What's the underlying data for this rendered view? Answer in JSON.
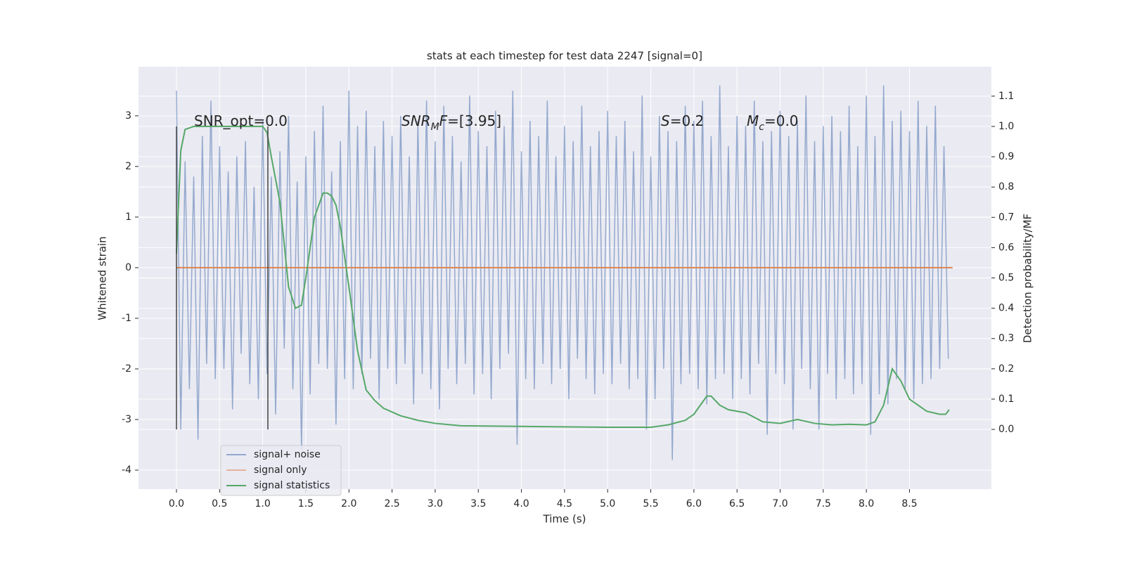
{
  "chart_data": {
    "type": "line",
    "title": "stats at each timestep for test data 2247 [signal=0]",
    "xlabel": "Time (s)",
    "ylabel": "Whitened strain",
    "y2label": "Detection probability/MF",
    "xlim": [
      -0.44,
      9.45
    ],
    "ylim": [
      -4.375,
      3.97
    ],
    "y2lim": [
      -0.197,
      1.197
    ],
    "xticks": [
      {
        "value": 0,
        "label": "0.0"
      },
      0.5,
      {
        "value": 1,
        "label": "1.0"
      },
      1.5,
      {
        "value": 2,
        "label": "2.0"
      },
      2.5,
      {
        "value": 3,
        "label": "3.0"
      },
      3.5,
      {
        "value": 4,
        "label": "4.0"
      },
      4.5,
      {
        "value": 5,
        "label": "5.0"
      },
      5.5,
      {
        "value": 6,
        "label": "6.0"
      },
      6.5,
      {
        "value": 7,
        "label": "7.0"
      },
      7.5,
      {
        "value": 8,
        "label": "8.0"
      },
      8.5
    ],
    "yticks": [
      -4,
      -3,
      -2,
      -1,
      0,
      1,
      2,
      3
    ],
    "y2ticks": [
      {
        "value": 0,
        "label": "0.0"
      },
      0.1,
      0.2,
      0.3,
      0.4,
      0.5,
      0.6,
      0.7,
      0.8,
      0.9,
      {
        "value": 1,
        "label": "1.0"
      },
      1.1
    ],
    "grid": true,
    "legend": "lower left",
    "annotations": [
      {
        "parts": [
          {
            "text": "SNR_opt=0.0"
          }
        ]
      },
      {
        "parts": [
          {
            "text": "SNR",
            "italic": true
          },
          {
            "text": "M",
            "italic": true,
            "sub": true
          },
          {
            "text": "F",
            "italic": true
          },
          {
            "text": "=[3.95]"
          }
        ]
      },
      {
        "parts": [
          {
            "text": "S",
            "italic": true
          },
          {
            "text": "=0.2"
          }
        ]
      },
      {
        "parts": [
          {
            "text": "M",
            "italic": true
          },
          {
            "text": "c",
            "italic": true,
            "sub": true
          },
          {
            "text": "=0.0"
          }
        ]
      }
    ],
    "vlines": [
      {
        "x": 0,
        "y2": [
          0,
          1
        ]
      },
      {
        "x": 1.06,
        "y2": [
          0,
          1
        ]
      }
    ],
    "series": [
      {
        "name": "signal+ noise",
        "color": "#4c72b0",
        "x": [
          0,
          0.05,
          0.1,
          0.15,
          0.2,
          0.25,
          0.3,
          0.35,
          0.4,
          0.45,
          0.5,
          0.55,
          0.6,
          0.65,
          0.7,
          0.75,
          0.8,
          0.85,
          0.9,
          0.95,
          1,
          1.05,
          1.1,
          1.15,
          1.2,
          1.25,
          1.3,
          1.35,
          1.4,
          1.45,
          1.5,
          1.55,
          1.6,
          1.65,
          1.7,
          1.75,
          1.8,
          1.85,
          1.9,
          1.95,
          2,
          2.05,
          2.1,
          2.15,
          2.2,
          2.25,
          2.3,
          2.35,
          2.4,
          2.45,
          2.5,
          2.55,
          2.6,
          2.65,
          2.7,
          2.75,
          2.8,
          2.85,
          2.9,
          2.95,
          3,
          3.05,
          3.1,
          3.15,
          3.2,
          3.25,
          3.3,
          3.35,
          3.4,
          3.45,
          3.5,
          3.55,
          3.6,
          3.65,
          3.7,
          3.75,
          3.8,
          3.85,
          3.9,
          3.95,
          4,
          4.05,
          4.1,
          4.15,
          4.2,
          4.25,
          4.3,
          4.35,
          4.4,
          4.45,
          4.5,
          4.55,
          4.6,
          4.65,
          4.7,
          4.75,
          4.8,
          4.85,
          4.9,
          4.95,
          5,
          5.05,
          5.1,
          5.15,
          5.2,
          5.25,
          5.3,
          5.35,
          5.4,
          5.45,
          5.5,
          5.55,
          5.6,
          5.65,
          5.7,
          5.75,
          5.8,
          5.85,
          5.9,
          5.95,
          6,
          6.05,
          6.1,
          6.15,
          6.2,
          6.25,
          6.3,
          6.35,
          6.4,
          6.45,
          6.5,
          6.55,
          6.6,
          6.65,
          6.7,
          6.75,
          6.8,
          6.85,
          6.9,
          6.95,
          7,
          7.05,
          7.1,
          7.15,
          7.2,
          7.25,
          7.3,
          7.35,
          7.4,
          7.45,
          7.5,
          7.55,
          7.6,
          7.65,
          7.7,
          7.75,
          7.8,
          7.85,
          7.9,
          7.95,
          8,
          8.05,
          8.1,
          8.15,
          8.2,
          8.25,
          8.3,
          8.35,
          8.4,
          8.45,
          8.5,
          8.55,
          8.6,
          8.65,
          8.7,
          8.75,
          8.8,
          8.85,
          8.9,
          8.95
        ],
        "values": [
          3.5,
          -3.2,
          2.1,
          -2.4,
          1.8,
          -3.4,
          2.6,
          -1.9,
          3.3,
          -2.2,
          2.4,
          -2.0,
          1.9,
          -2.8,
          2.2,
          -1.7,
          2.5,
          -2.3,
          1.6,
          -2.6,
          2.9,
          -2.1,
          1.8,
          -2.9,
          2.3,
          -1.6,
          3.0,
          -2.4,
          1.7,
          -3.6,
          2.2,
          -2.5,
          2.7,
          -1.9,
          3.2,
          -2.0,
          1.9,
          -3.1,
          2.5,
          -2.2,
          3.5,
          -2.4,
          2.8,
          -2.1,
          3.1,
          -1.8,
          2.4,
          -2.6,
          2.9,
          -2.0,
          2.6,
          -2.3,
          3.0,
          -1.9,
          2.2,
          -2.7,
          2.9,
          -2.1,
          3.3,
          -2.4,
          2.5,
          -2.8,
          3.2,
          -2.0,
          2.6,
          -2.3,
          2.1,
          -1.9,
          3.4,
          -2.5,
          2.7,
          -2.1,
          2.4,
          -2.6,
          3.1,
          -2.0,
          2.8,
          -1.7,
          3.5,
          -3.5,
          2.3,
          -2.2,
          2.9,
          -2.4,
          2.6,
          -1.9,
          3.3,
          -2.3,
          2.2,
          -2.0,
          2.8,
          -2.6,
          2.5,
          -1.8,
          3.2,
          -2.2,
          2.4,
          -2.5,
          2.7,
          -2.1,
          3.1,
          -2.3,
          2.6,
          -1.9,
          2.9,
          -2.4,
          2.3,
          -2.2,
          3.4,
          -3.2,
          2.2,
          -2.6,
          3.0,
          -2.0,
          2.7,
          -3.8,
          2.5,
          -2.3,
          3.2,
          -2.1,
          2.9,
          -2.4,
          3.3,
          -2.7,
          2.6,
          -2.2,
          3.6,
          -2.1,
          2.4,
          -2.6,
          3.0,
          -2.2,
          2.8,
          -2.5,
          3.3,
          -1.9,
          2.5,
          -3.3,
          2.7,
          -2.1,
          3.1,
          -2.3,
          2.6,
          -3.2,
          2.9,
          -2.0,
          3.4,
          -2.4,
          2.5,
          -3.2,
          2.8,
          -2.1,
          3.0,
          -2.6,
          2.7,
          -2.2,
          3.2,
          -2.5,
          2.4,
          -2.3,
          3.4,
          -3.3,
          2.6,
          -2.5,
          3.6,
          -2.7,
          2.9,
          -2.2,
          3.1,
          -2.4,
          2.7,
          -2.6,
          3.3,
          -2.3,
          2.8,
          -2.2,
          3.2,
          -2.0,
          2.4,
          -1.8
        ]
      },
      {
        "name": "signal only",
        "color": "#dd8452",
        "x": [
          0,
          9
        ],
        "values": [
          0,
          0
        ]
      },
      {
        "name": "signal statistics",
        "color": "#55a868",
        "axis": "y2",
        "x": [
          0,
          0.05,
          0.1,
          0.2,
          0.4,
          0.6,
          0.8,
          1.0,
          1.05,
          1.1,
          1.2,
          1.3,
          1.38,
          1.45,
          1.5,
          1.6,
          1.7,
          1.75,
          1.8,
          1.85,
          1.9,
          2.0,
          2.1,
          2.2,
          2.3,
          2.4,
          2.6,
          2.8,
          3.0,
          3.3,
          4.0,
          5.0,
          5.5,
          5.7,
          5.9,
          6.0,
          6.1,
          6.15,
          6.2,
          6.3,
          6.4,
          6.6,
          6.8,
          7.0,
          7.2,
          7.4,
          7.6,
          7.8,
          8.0,
          8.1,
          8.2,
          8.3,
          8.4,
          8.5,
          8.7,
          8.85,
          8.92,
          8.96
        ],
        "values": [
          0.58,
          0.92,
          0.99,
          1.0,
          1.0,
          1.0,
          1.0,
          1.0,
          0.98,
          0.9,
          0.75,
          0.47,
          0.4,
          0.41,
          0.5,
          0.7,
          0.78,
          0.78,
          0.77,
          0.74,
          0.67,
          0.47,
          0.26,
          0.13,
          0.095,
          0.07,
          0.045,
          0.03,
          0.02,
          0.012,
          0.01,
          0.007,
          0.007,
          0.015,
          0.03,
          0.05,
          0.09,
          0.11,
          0.11,
          0.08,
          0.065,
          0.055,
          0.025,
          0.02,
          0.033,
          0.02,
          0.015,
          0.017,
          0.015,
          0.025,
          0.08,
          0.2,
          0.16,
          0.1,
          0.06,
          0.05,
          0.05,
          0.065
        ]
      }
    ]
  }
}
